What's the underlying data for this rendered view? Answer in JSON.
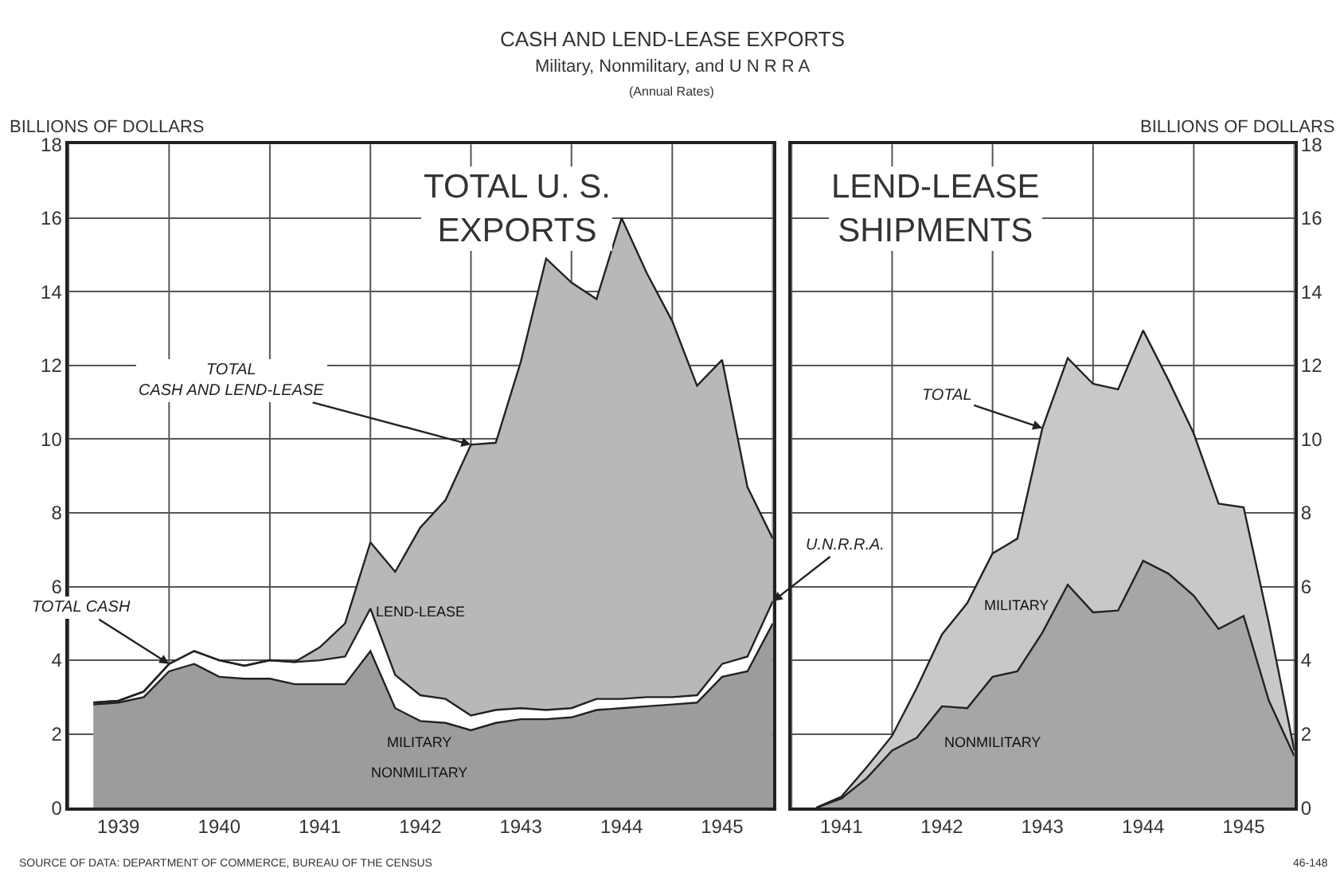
{
  "chart_data": [
    {
      "type": "area",
      "stacked": true,
      "title": "TOTAL U. S.\nEXPORTS",
      "ylabel": "BILLIONS OF DOLLARS",
      "annotations": [
        "CASH AND LEND-LEASE EXPORTS",
        "Military, Nonmilitary, and U N R R A",
        "(Annual Rates)",
        "SOURCE OF DATA: DEPARTMENT OF COMMERCE, BUREAU OF THE CENSUS",
        {
          "text": "TOTAL CASH",
          "x": "1940-01",
          "y": 3.9
        },
        {
          "text": "TOTAL\nCASH AND LEND-LEASE",
          "x": "1943-01",
          "y": 9.85
        },
        {
          "text": "U.N.R.R.A.",
          "x": "1946-01",
          "y": 5.6
        }
      ],
      "x": [
        "1939-04",
        "1939-07",
        "1939-10",
        "1940-01",
        "1940-04",
        "1940-07",
        "1940-10",
        "1941-01",
        "1941-04",
        "1941-07",
        "1941-10",
        "1942-01",
        "1942-04",
        "1942-07",
        "1942-10",
        "1943-01",
        "1943-04",
        "1943-07",
        "1943-10",
        "1944-01",
        "1944-04",
        "1944-07",
        "1944-10",
        "1945-01",
        "1945-04",
        "1945-07",
        "1945-10",
        "1946-01"
      ],
      "series": [
        {
          "name": "NONMILITARY",
          "color": "#9c9c9c",
          "values": [
            2.8,
            2.85,
            3.0,
            3.7,
            3.9,
            3.55,
            3.5,
            3.5,
            3.35,
            3.35,
            3.35,
            4.25,
            2.7,
            2.35,
            2.3,
            2.1,
            2.3,
            2.4,
            2.4,
            2.45,
            2.65,
            2.7,
            2.75,
            2.8,
            2.85,
            3.55,
            3.7,
            5.0
          ]
        },
        {
          "name": "MILITARY",
          "color": "#ffffff",
          "values": [
            0.05,
            0.05,
            0.15,
            0.2,
            0.35,
            0.45,
            0.35,
            0.5,
            0.6,
            0.65,
            0.75,
            1.15,
            0.9,
            0.7,
            0.65,
            0.4,
            0.35,
            0.3,
            0.25,
            0.25,
            0.3,
            0.25,
            0.25,
            0.2,
            0.2,
            0.35,
            0.4,
            0.6
          ]
        },
        {
          "name": "LEND-LEASE",
          "color": "#b8b8b8",
          "values": [
            0,
            0,
            0,
            0,
            0,
            0,
            0,
            0,
            0,
            0.35,
            0.9,
            1.8,
            2.8,
            4.55,
            5.4,
            7.35,
            7.25,
            9.4,
            12.25,
            11.55,
            10.85,
            13.05,
            11.5,
            10.2,
            8.4,
            8.25,
            4.6,
            1.7
          ]
        }
      ],
      "xlim": [
        "1939-01",
        "1946-01"
      ],
      "xticks": [
        {
          "value": "1939-01",
          "label": null
        },
        {
          "value": "1939-07",
          "label": "1939"
        },
        {
          "value": "1940-01",
          "label": null
        },
        {
          "value": "1940-07",
          "label": "1940"
        },
        {
          "value": "1941-01",
          "label": null
        },
        {
          "value": "1941-07",
          "label": "1941"
        },
        {
          "value": "1942-01",
          "label": null
        },
        {
          "value": "1942-07",
          "label": "1942"
        },
        {
          "value": "1943-01",
          "label": null
        },
        {
          "value": "1943-07",
          "label": "1943"
        },
        {
          "value": "1944-01",
          "label": null
        },
        {
          "value": "1944-07",
          "label": "1944"
        },
        {
          "value": "1945-01",
          "label": null
        },
        {
          "value": "1945-07",
          "label": "1945"
        },
        {
          "value": "1946-01",
          "label": null
        }
      ],
      "ylim": [
        0,
        18
      ],
      "yticks": [
        0,
        2,
        4,
        6,
        8,
        10,
        12,
        14,
        16,
        18
      ],
      "grid": true
    },
    {
      "type": "area",
      "stacked": true,
      "title": "LEND-LEASE\nSHIPMENTS",
      "ylabel": "BILLIONS OF DOLLARS",
      "annotations": [
        "46-148",
        {
          "text": "TOTAL",
          "x": "1943-07",
          "y": 10.3
        }
      ],
      "x": [
        "1941-04",
        "1941-07",
        "1941-10",
        "1942-01",
        "1942-04",
        "1942-07",
        "1942-10",
        "1943-01",
        "1943-04",
        "1943-07",
        "1943-10",
        "1944-01",
        "1944-04",
        "1944-07",
        "1944-10",
        "1945-01",
        "1945-04",
        "1945-07",
        "1945-10",
        "1946-01"
      ],
      "series": [
        {
          "name": "NONMILITARY",
          "color": "#a6a6a6",
          "values": [
            0,
            0.25,
            0.8,
            1.55,
            1.9,
            2.75,
            2.7,
            3.55,
            3.7,
            4.75,
            6.05,
            5.3,
            5.35,
            6.7,
            6.35,
            5.75,
            4.85,
            5.2,
            2.9,
            1.4
          ]
        },
        {
          "name": "MILITARY",
          "color": "#c8c8c8",
          "values": [
            0,
            0.05,
            0.3,
            0.4,
            1.35,
            1.95,
            2.85,
            3.35,
            3.6,
            5.55,
            6.15,
            6.2,
            6.0,
            6.25,
            5.25,
            4.4,
            3.4,
            2.95,
            2.1,
            0.15
          ]
        }
      ],
      "xlim": [
        "1941-01",
        "1946-01"
      ],
      "xticks": [
        {
          "value": "1941-01",
          "label": null
        },
        {
          "value": "1941-07",
          "label": "1941"
        },
        {
          "value": "1942-01",
          "label": null
        },
        {
          "value": "1942-07",
          "label": "1942"
        },
        {
          "value": "1943-01",
          "label": null
        },
        {
          "value": "1943-07",
          "label": "1943"
        },
        {
          "value": "1944-01",
          "label": null
        },
        {
          "value": "1944-07",
          "label": "1944"
        },
        {
          "value": "1945-01",
          "label": null
        },
        {
          "value": "1945-07",
          "label": "1945"
        },
        {
          "value": "1946-01",
          "label": null
        }
      ],
      "ylim": [
        0,
        18
      ],
      "yticks": [
        0,
        2,
        4,
        6,
        8,
        10,
        12,
        14,
        16,
        18
      ],
      "grid": true
    }
  ]
}
